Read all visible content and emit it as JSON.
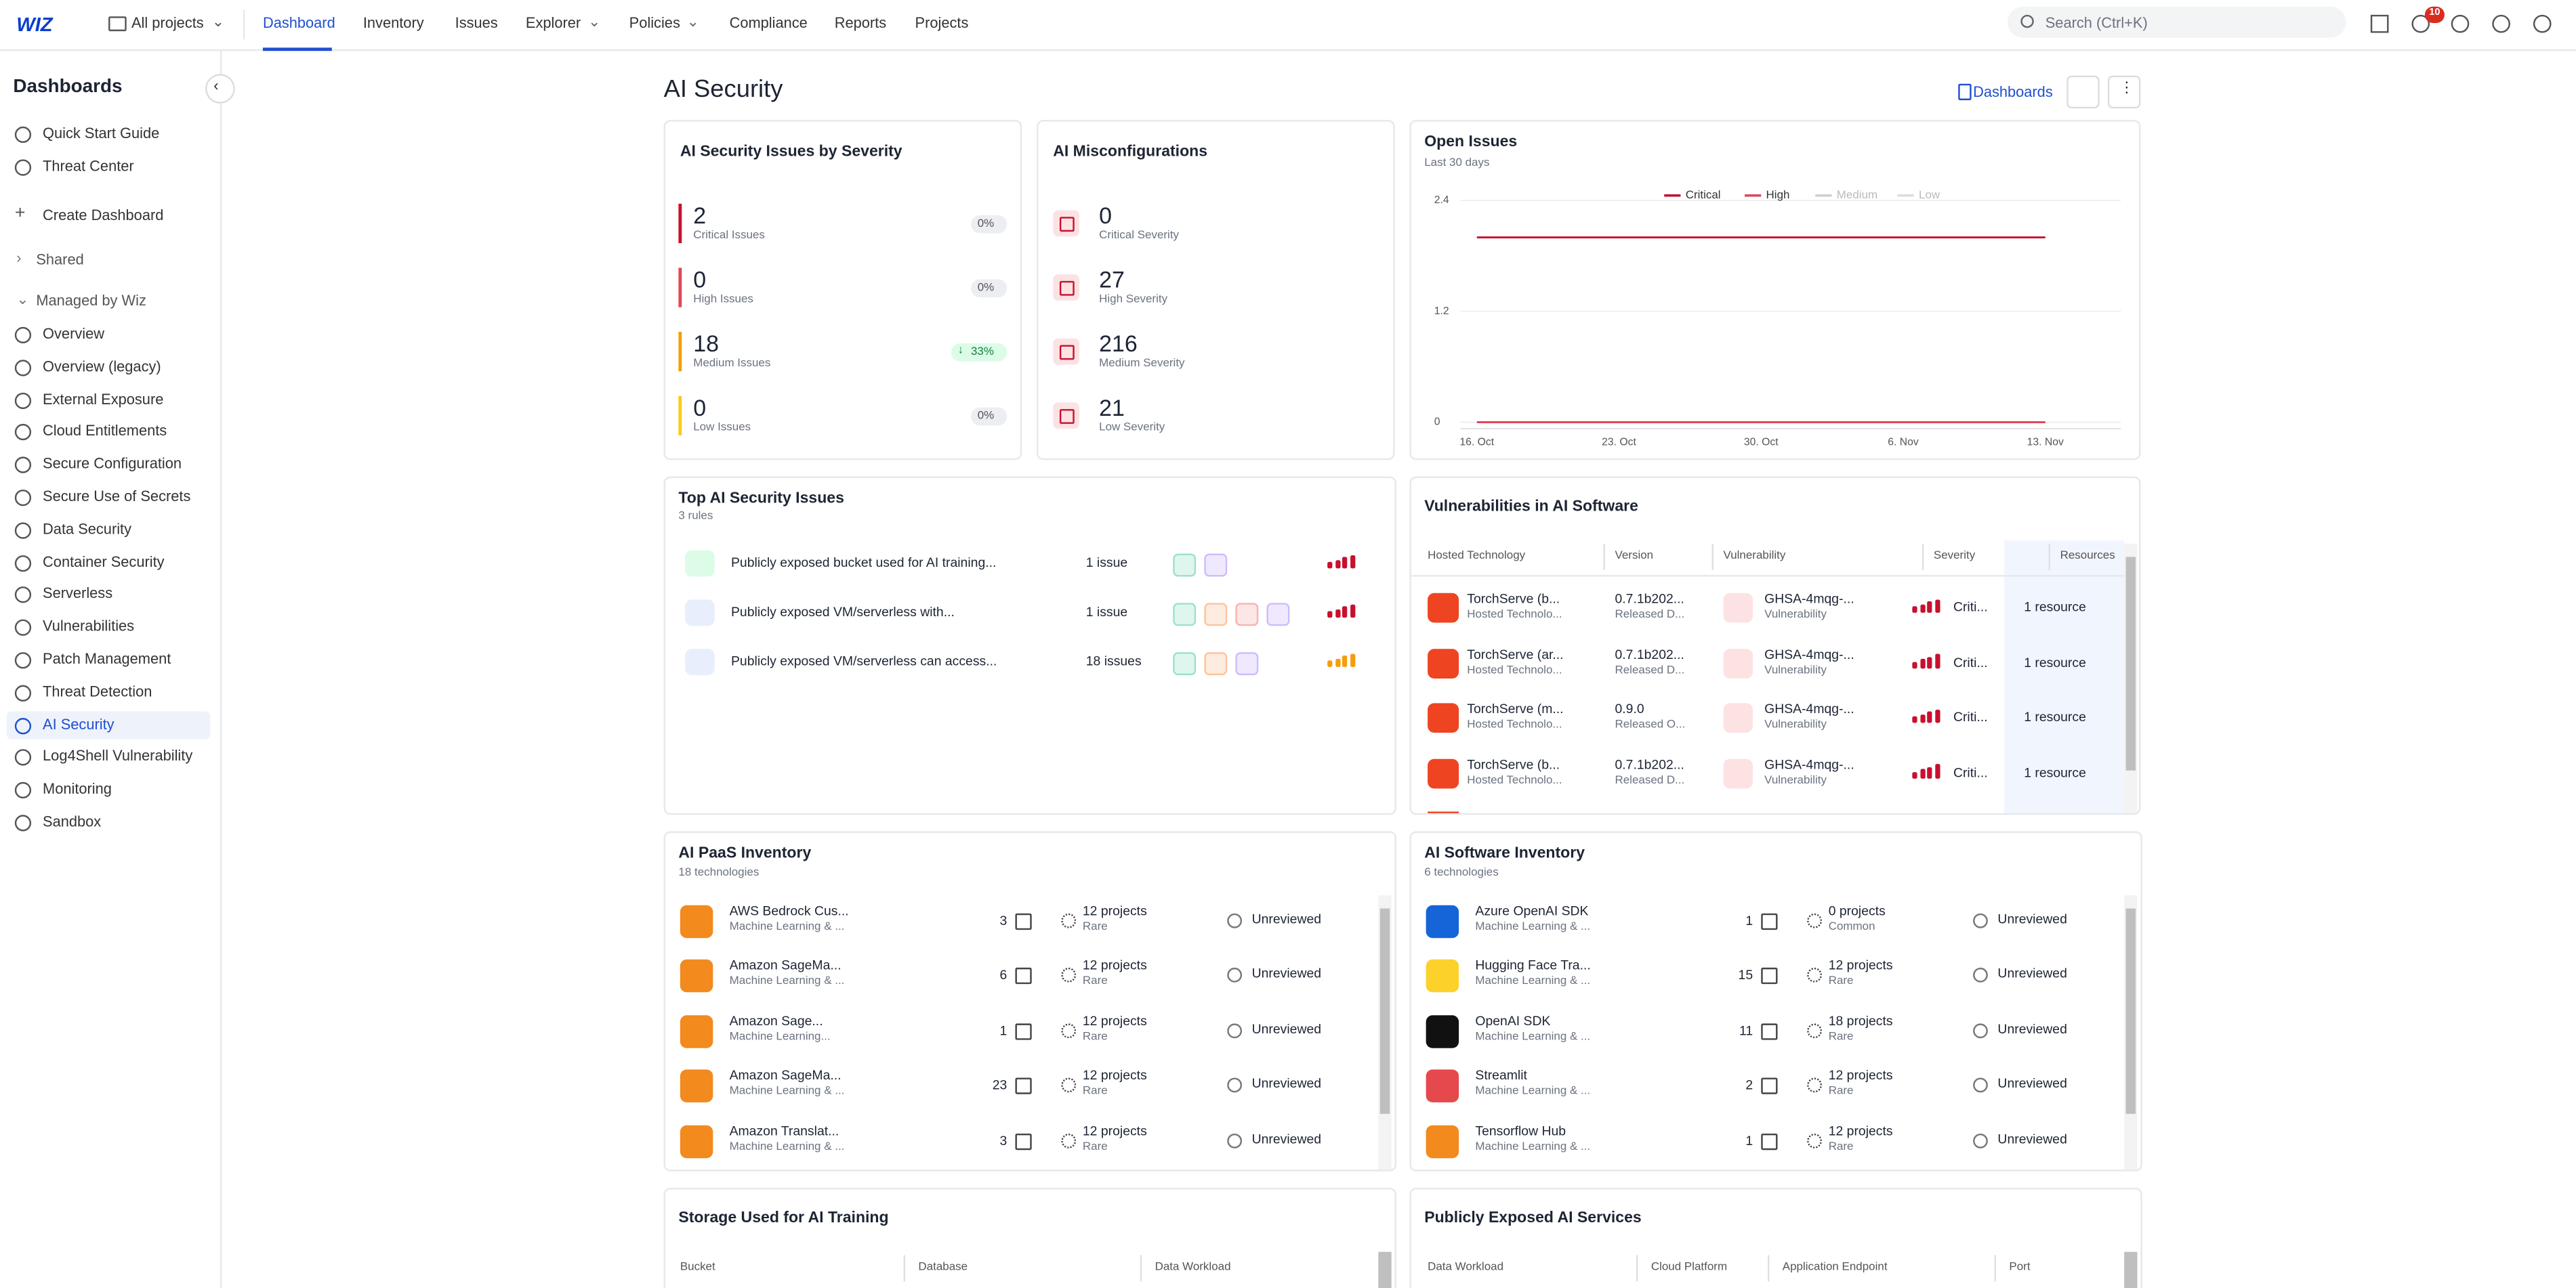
{
  "nav": {
    "logo": "WIZ",
    "project": "All projects",
    "tabs": [
      "Dashboard",
      "Inventory",
      "Issues",
      "Explorer",
      "Policies",
      "Compliance",
      "Reports",
      "Projects"
    ],
    "active_tab": 0,
    "search": "Search (Ctrl+K)",
    "notifications": "10"
  },
  "sidebar": {
    "title": "Dashboards",
    "items": [
      "Quick Start Guide",
      "Threat Center",
      "Create Dashboard",
      "Shared",
      "Managed by Wiz",
      "Overview",
      "Overview (legacy)",
      "External Exposure",
      "Cloud Entitlements",
      "Secure Configuration",
      "Secure Use of Secrets",
      "Data Security",
      "Container Security",
      "Serverless",
      "Vulnerabilities",
      "Patch Management",
      "Threat Detection",
      "AI Security",
      "Log4Shell Vulnerability",
      "Monitoring",
      "Sandbox"
    ],
    "active_item": 17
  },
  "page": {
    "title": "AI Security",
    "button": "Dashboards"
  },
  "severity": {
    "title": "AI Security Issues by Severity",
    "rows": [
      {
        "value": "2",
        "label": "Critical Issues",
        "change": "0%"
      },
      {
        "value": "0",
        "label": "High Issues",
        "change": "0%"
      },
      {
        "value": "18",
        "label": "Medium Issues",
        "change": "33%"
      },
      {
        "value": "0",
        "label": "Low Issues",
        "change": "0%"
      }
    ]
  },
  "misconfig": {
    "title": "AI Misconfigurations",
    "rows": [
      {
        "value": "0",
        "label": "Critical Severity"
      },
      {
        "value": "27",
        "label": "High Severity"
      },
      {
        "value": "216",
        "label": "Medium Severity"
      },
      {
        "value": "21",
        "label": "Low Severity"
      }
    ]
  },
  "open_issues": {
    "title": "Open Issues",
    "subtitle": "Last 30 days",
    "chart_data": {
      "type": "line",
      "categories": [
        "16. Oct",
        "23. Oct",
        "30. Oct",
        "6. Nov",
        "13. Nov"
      ],
      "series": [
        {
          "name": "Critical",
          "color": "#c8102e",
          "values": [
            2,
            2,
            2,
            2,
            2
          ]
        },
        {
          "name": "High",
          "color": "#e0475b",
          "values": [
            0,
            0,
            0,
            0,
            0
          ]
        },
        {
          "name": "Medium",
          "color": "#cfcfcf",
          "values": [
            null,
            null,
            null,
            null,
            null
          ]
        },
        {
          "name": "Low",
          "color": "#dcdcdc",
          "values": [
            null,
            null,
            null,
            null,
            null
          ]
        }
      ],
      "ylim": [
        0,
        2.4
      ],
      "yticks": [
        0,
        1.2,
        2.4
      ],
      "grid": true,
      "legend": "top"
    }
  },
  "top_issues": {
    "title": "Top AI Security Issues",
    "subtitle": "3 rules",
    "rows": [
      {
        "name": "Publicly exposed bucket used for AI training...",
        "count": "1 issue"
      },
      {
        "name": "Publicly exposed VM/serverless with...",
        "count": "1 issue"
      },
      {
        "name": "Publicly exposed VM/serverless can access...",
        "count": "18 issues"
      }
    ]
  },
  "vulns": {
    "title": "Vulnerabilities in AI Software",
    "headers": [
      "Hosted Technology",
      "Version",
      "Vulnerability",
      "Severity",
      "Resources"
    ],
    "rows": [
      [
        "TorchServe (b...",
        "Hosted Technolo...",
        "0.7.1b202...",
        "Released D...",
        "GHSA-4mqg-...",
        "Vulnerability",
        "Criti...",
        "1 resource"
      ],
      [
        "TorchServe (ar...",
        "Hosted Technolo...",
        "0.7.1b202...",
        "Released D...",
        "GHSA-4mqg-...",
        "Vulnerability",
        "Criti...",
        "1 resource"
      ],
      [
        "TorchServe (m...",
        "Hosted Technolo...",
        "0.9.0",
        "Released O...",
        "GHSA-4mqg-...",
        "Vulnerability",
        "Criti...",
        "1 resource"
      ],
      [
        "TorchServe (b...",
        "Hosted Technolo...",
        "0.7.1b202...",
        "Released D...",
        "GHSA-4mqg-...",
        "Vulnerability",
        "Criti...",
        "1 resource"
      ]
    ]
  },
  "paas": {
    "title": "AI PaaS Inventory",
    "subtitle": "18 technologies",
    "rows": [
      [
        "AWS Bedrock Cus...",
        "Machine Learning & ...",
        "3",
        "12 projects",
        "Rare",
        "Unreviewed"
      ],
      [
        "Amazon SageMa...",
        "Machine Learning & ...",
        "6",
        "12 projects",
        "Rare",
        "Unreviewed"
      ],
      [
        "Amazon Sage...",
        "Machine Learning...",
        "1",
        "12 projects",
        "Rare",
        "Unreviewed"
      ],
      [
        "Amazon SageMa...",
        "Machine Learning & ...",
        "23",
        "12 projects",
        "Rare",
        "Unreviewed"
      ],
      [
        "Amazon Translat...",
        "Machine Learning & ...",
        "3",
        "12 projects",
        "Rare",
        "Unreviewed"
      ]
    ]
  },
  "software": {
    "title": "AI Software Inventory",
    "subtitle": "6 technologies",
    "rows": [
      [
        "Azure OpenAI SDK",
        "Machine Learning & ...",
        "1",
        "0 projects",
        "Common",
        "Unreviewed"
      ],
      [
        "Hugging Face Tra...",
        "Machine Learning & ...",
        "15",
        "12 projects",
        "Rare",
        "Unreviewed"
      ],
      [
        "OpenAI SDK",
        "Machine Learning & ...",
        "11",
        "18 projects",
        "Rare",
        "Unreviewed"
      ],
      [
        "Streamlit",
        "Machine Learning & ...",
        "2",
        "12 projects",
        "Rare",
        "Unreviewed"
      ],
      [
        "Tensorflow Hub",
        "Machine Learning & ...",
        "1",
        "12 projects",
        "Rare",
        "Unreviewed"
      ]
    ]
  },
  "storage": {
    "title": "Storage Used for AI Training",
    "headers": [
      "Bucket",
      "Database",
      "Data Workload"
    ]
  },
  "exposed": {
    "title": "Publicly Exposed AI Services",
    "headers": [
      "Data Workload",
      "Cloud Platform",
      "Application Endpoint",
      "Port"
    ]
  }
}
